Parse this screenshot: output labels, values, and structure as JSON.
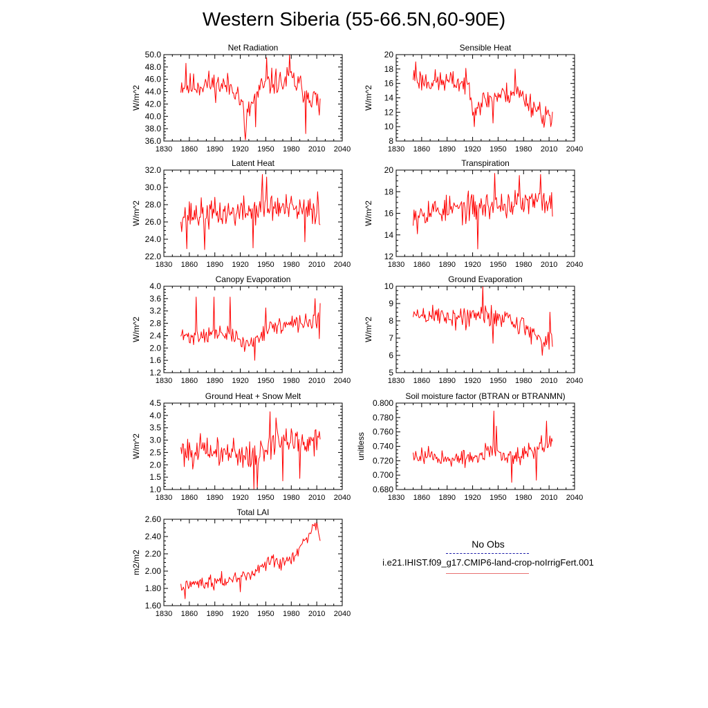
{
  "figure_title": "Western Siberia (55-66.5N,60-90E)",
  "legend": {
    "obs_label": "No Obs",
    "obs_color": "#1a1aa8",
    "run_label": "i.e21.IHIST.f09_g17.CMIP6-land-crop-noIrrigFert.001",
    "run_color": "#ff0000"
  },
  "chart_data": [
    {
      "type": "line",
      "title": "Net Radiation",
      "ylabel": "W/m^2",
      "xlim": [
        1830,
        2040
      ],
      "ylim": [
        36,
        50
      ],
      "yticks": [
        36.0,
        38.0,
        40.0,
        42.0,
        44.0,
        46.0,
        48.0,
        50.0
      ],
      "ydecimals": 1,
      "xticks": [
        1830,
        1860,
        1890,
        1920,
        1950,
        1980,
        2010,
        2040
      ],
      "x_start": 1850,
      "x_end": 2014,
      "color": "#ff0000",
      "anchors": [
        [
          1850,
          45.2
        ],
        [
          1860,
          44.8
        ],
        [
          1880,
          45.3
        ],
        [
          1900,
          45.0
        ],
        [
          1915,
          44.6
        ],
        [
          1922,
          41.5
        ],
        [
          1927,
          39.5
        ],
        [
          1935,
          42.5
        ],
        [
          1945,
          44.6
        ],
        [
          1960,
          45.7
        ],
        [
          1970,
          45.3
        ],
        [
          1978,
          46.3
        ],
        [
          1990,
          44.8
        ],
        [
          2000,
          43.8
        ],
        [
          2014,
          42.0
        ]
      ],
      "amp": 2.0,
      "seed": 11,
      "spikes": [
        [
          1926,
          36.2
        ],
        [
          1925,
          37.5
        ],
        [
          1951,
          49.5
        ],
        [
          1978,
          50.0
        ],
        [
          1997,
          37.2
        ],
        [
          1938,
          38.3
        ],
        [
          1856,
          48.6
        ],
        [
          2013,
          40.2
        ]
      ]
    },
    {
      "type": "line",
      "title": "Sensible Heat",
      "ylabel": "W/m^2",
      "xlim": [
        1830,
        2040
      ],
      "ylim": [
        8,
        20
      ],
      "yticks": [
        8,
        10,
        12,
        14,
        16,
        18,
        20
      ],
      "ydecimals": 0,
      "xticks": [
        1830,
        1860,
        1890,
        1920,
        1950,
        1980,
        2010,
        2040
      ],
      "x_start": 1850,
      "x_end": 2014,
      "color": "#ff0000",
      "anchors": [
        [
          1850,
          17.0
        ],
        [
          1860,
          16.4
        ],
        [
          1880,
          16.2
        ],
        [
          1900,
          16.2
        ],
        [
          1915,
          15.8
        ],
        [
          1922,
          12.8
        ],
        [
          1930,
          13.3
        ],
        [
          1945,
          14.2
        ],
        [
          1960,
          14.5
        ],
        [
          1970,
          15.0
        ],
        [
          1980,
          14.0
        ],
        [
          1990,
          13.0
        ],
        [
          2000,
          12.2
        ],
        [
          2014,
          11.2
        ]
      ],
      "amp": 1.5,
      "seed": 23,
      "spikes": [
        [
          1853,
          19.0
        ],
        [
          1922,
          10.0
        ],
        [
          1944,
          10.5
        ],
        [
          1970,
          18.0
        ],
        [
          2004,
          9.9
        ],
        [
          2012,
          10.0
        ]
      ]
    },
    {
      "type": "line",
      "title": "Latent Heat",
      "ylabel": "W/m^2",
      "xlim": [
        1830,
        2040
      ],
      "ylim": [
        22,
        32
      ],
      "yticks": [
        22.0,
        24.0,
        26.0,
        28.0,
        30.0,
        32.0
      ],
      "ydecimals": 1,
      "xticks": [
        1830,
        1860,
        1890,
        1920,
        1950,
        1980,
        2010,
        2040
      ],
      "x_start": 1850,
      "x_end": 2014,
      "color": "#ff0000",
      "anchors": [
        [
          1850,
          26.8
        ],
        [
          1880,
          26.9
        ],
        [
          1900,
          27.0
        ],
        [
          1920,
          27.1
        ],
        [
          1940,
          27.5
        ],
        [
          1960,
          27.7
        ],
        [
          1980,
          27.4
        ],
        [
          2000,
          27.2
        ],
        [
          2014,
          27.3
        ]
      ],
      "amp": 1.6,
      "seed": 37,
      "spikes": [
        [
          1857,
          22.9
        ],
        [
          1878,
          22.8
        ],
        [
          1935,
          23.0
        ],
        [
          1946,
          31.5
        ],
        [
          1951,
          31.2
        ],
        [
          1996,
          23.7
        ],
        [
          2011,
          29.5
        ]
      ]
    },
    {
      "type": "line",
      "title": "Transpiration",
      "ylabel": "W/m^2",
      "xlim": [
        1830,
        2040
      ],
      "ylim": [
        12,
        20
      ],
      "yticks": [
        12,
        14,
        16,
        18,
        20
      ],
      "ydecimals": 0,
      "xticks": [
        1830,
        1860,
        1890,
        1920,
        1950,
        1980,
        2010,
        2040
      ],
      "x_start": 1850,
      "x_end": 2014,
      "color": "#ff0000",
      "anchors": [
        [
          1850,
          16.2
        ],
        [
          1880,
          16.3
        ],
        [
          1900,
          16.4
        ],
        [
          1920,
          16.5
        ],
        [
          1940,
          16.7
        ],
        [
          1960,
          16.8
        ],
        [
          1980,
          16.9
        ],
        [
          2000,
          17.0
        ],
        [
          2014,
          17.2
        ]
      ],
      "amp": 1.2,
      "seed": 53,
      "spikes": [
        [
          1926,
          12.7
        ],
        [
          1946,
          19.7
        ],
        [
          1975,
          19.5
        ],
        [
          2000,
          19.6
        ],
        [
          2014,
          15.7
        ],
        [
          1855,
          14.1
        ]
      ]
    },
    {
      "type": "line",
      "title": "Canopy Evaporation",
      "ylabel": "W/m^2",
      "xlim": [
        1830,
        2040
      ],
      "ylim": [
        1.2,
        4.0
      ],
      "yticks": [
        1.2,
        1.6,
        2.0,
        2.4,
        2.8,
        3.2,
        3.6,
        4.0
      ],
      "ydecimals": 1,
      "xticks": [
        1830,
        1860,
        1890,
        1920,
        1950,
        1980,
        2010,
        2040
      ],
      "x_start": 1850,
      "x_end": 2014,
      "color": "#ff0000",
      "anchors": [
        [
          1850,
          2.4
        ],
        [
          1860,
          2.35
        ],
        [
          1880,
          2.45
        ],
        [
          1900,
          2.45
        ],
        [
          1915,
          2.35
        ],
        [
          1925,
          2.1
        ],
        [
          1935,
          2.2
        ],
        [
          1945,
          2.5
        ],
        [
          1960,
          2.7
        ],
        [
          1980,
          2.75
        ],
        [
          2000,
          2.85
        ],
        [
          2014,
          2.9
        ]
      ],
      "amp": 0.25,
      "seed": 71,
      "spikes": [
        [
          1868,
          3.65
        ],
        [
          1889,
          3.65
        ],
        [
          1908,
          3.65
        ],
        [
          1937,
          1.6
        ],
        [
          1950,
          3.3
        ],
        [
          2008,
          3.6
        ],
        [
          2014,
          3.45
        ],
        [
          2013,
          2.3
        ]
      ]
    },
    {
      "type": "line",
      "title": "Ground Evaporation",
      "ylabel": "W/m^2",
      "xlim": [
        1830,
        2040
      ],
      "ylim": [
        5,
        10
      ],
      "yticks": [
        5,
        6,
        7,
        8,
        9,
        10
      ],
      "ydecimals": 0,
      "xticks": [
        1830,
        1860,
        1890,
        1920,
        1950,
        1980,
        2010,
        2040
      ],
      "x_start": 1850,
      "x_end": 2014,
      "color": "#ff0000",
      "anchors": [
        [
          1850,
          8.3
        ],
        [
          1880,
          8.3
        ],
        [
          1900,
          8.2
        ],
        [
          1920,
          8.2
        ],
        [
          1935,
          8.3
        ],
        [
          1945,
          8.3
        ],
        [
          1960,
          8.2
        ],
        [
          1975,
          7.8
        ],
        [
          1990,
          7.3
        ],
        [
          2000,
          7.0
        ],
        [
          2014,
          7.0
        ]
      ],
      "amp": 0.65,
      "seed": 89,
      "spikes": [
        [
          1932,
          10.0
        ],
        [
          1944,
          6.7
        ],
        [
          2002,
          6.0
        ],
        [
          2011,
          8.5
        ],
        [
          2014,
          6.5
        ]
      ]
    },
    {
      "type": "line",
      "title": "Ground Heat + Snow Melt",
      "ylabel": "W/m^2",
      "xlim": [
        1830,
        2040
      ],
      "ylim": [
        1.0,
        4.5
      ],
      "yticks": [
        1.0,
        1.5,
        2.0,
        2.5,
        3.0,
        3.5,
        4.0,
        4.5
      ],
      "ydecimals": 1,
      "xticks": [
        1830,
        1860,
        1890,
        1920,
        1950,
        1980,
        2010,
        2040
      ],
      "x_start": 1850,
      "x_end": 2014,
      "color": "#ff0000",
      "anchors": [
        [
          1850,
          2.6
        ],
        [
          1880,
          2.55
        ],
        [
          1900,
          2.5
        ],
        [
          1920,
          2.45
        ],
        [
          1935,
          2.35
        ],
        [
          1950,
          2.6
        ],
        [
          1960,
          2.95
        ],
        [
          1980,
          3.0
        ],
        [
          2000,
          2.95
        ],
        [
          2014,
          3.0
        ]
      ],
      "amp": 0.55,
      "seed": 101,
      "spikes": [
        [
          1936,
          1.0
        ],
        [
          1940,
          1.05
        ],
        [
          1955,
          4.15
        ],
        [
          1970,
          1.35
        ],
        [
          1990,
          1.45
        ],
        [
          1962,
          3.9
        ]
      ]
    },
    {
      "type": "line",
      "title": "Soil moisture factor (BTRAN or BTRANMN)",
      "ylabel": "unitless",
      "xlim": [
        1830,
        2040
      ],
      "ylim": [
        0.68,
        0.8
      ],
      "yticks": [
        0.68,
        0.7,
        0.72,
        0.74,
        0.76,
        0.78,
        0.8
      ],
      "ydecimals": 3,
      "xticks": [
        1830,
        1860,
        1890,
        1920,
        1950,
        1980,
        2010,
        2040
      ],
      "x_start": 1850,
      "x_end": 2014,
      "color": "#ff0000",
      "anchors": [
        [
          1850,
          0.727
        ],
        [
          1870,
          0.728
        ],
        [
          1890,
          0.722
        ],
        [
          1910,
          0.722
        ],
        [
          1930,
          0.727
        ],
        [
          1945,
          0.733
        ],
        [
          1960,
          0.725
        ],
        [
          1980,
          0.73
        ],
        [
          2000,
          0.74
        ],
        [
          2014,
          0.745
        ]
      ],
      "amp": 0.011,
      "seed": 127,
      "spikes": [
        [
          1945,
          0.789
        ],
        [
          1948,
          0.768
        ],
        [
          1966,
          0.69
        ],
        [
          1995,
          0.693
        ],
        [
          2007,
          0.775
        ]
      ]
    },
    {
      "type": "line",
      "title": "Total LAI",
      "ylabel": "m2/m2",
      "xlim": [
        1830,
        2040
      ],
      "ylim": [
        1.6,
        2.6
      ],
      "yticks": [
        1.6,
        1.8,
        2.0,
        2.2,
        2.4,
        2.6
      ],
      "ydecimals": 2,
      "xticks": [
        1830,
        1860,
        1890,
        1920,
        1950,
        1980,
        2010,
        2040
      ],
      "x_start": 1850,
      "x_end": 2014,
      "color": "#ff0000",
      "anchors": [
        [
          1850,
          1.82
        ],
        [
          1865,
          1.86
        ],
        [
          1880,
          1.87
        ],
        [
          1890,
          1.88
        ],
        [
          1900,
          1.89
        ],
        [
          1910,
          1.9
        ],
        [
          1920,
          1.94
        ],
        [
          1935,
          1.98
        ],
        [
          1945,
          2.06
        ],
        [
          1955,
          2.12
        ],
        [
          1965,
          2.08
        ],
        [
          1975,
          2.1
        ],
        [
          1985,
          2.18
        ],
        [
          1995,
          2.35
        ],
        [
          2005,
          2.45
        ],
        [
          2010,
          2.5
        ],
        [
          2014,
          2.4
        ]
      ],
      "amp": 0.07,
      "seed": 149,
      "spikes": [
        [
          2010,
          2.57
        ],
        [
          1855,
          1.68
        ],
        [
          2014,
          2.35
        ],
        [
          1920,
          1.76
        ]
      ]
    }
  ]
}
